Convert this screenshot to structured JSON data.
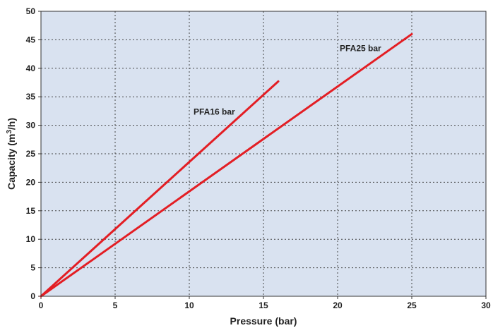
{
  "chart_data": {
    "type": "line",
    "title": "",
    "xlabel": "Pressure (bar)",
    "ylabel_prefix": "Capacity (m",
    "ylabel_sup": "3",
    "ylabel_suffix": "/h)",
    "xlim": [
      0,
      30
    ],
    "ylim": [
      0,
      50
    ],
    "xticks": [
      0,
      5,
      10,
      15,
      20,
      25,
      30
    ],
    "yticks": [
      0,
      5,
      10,
      15,
      20,
      25,
      30,
      35,
      40,
      45,
      50
    ],
    "grid": true,
    "background_color": "#d9e2f0",
    "line_color": "#e31e24",
    "series": [
      {
        "name": "PFA16 bar",
        "x": [
          0,
          16
        ],
        "y": [
          0,
          37.7
        ]
      },
      {
        "name": "PFA25 bar",
        "x": [
          0,
          25
        ],
        "y": [
          0,
          46
        ]
      }
    ]
  }
}
